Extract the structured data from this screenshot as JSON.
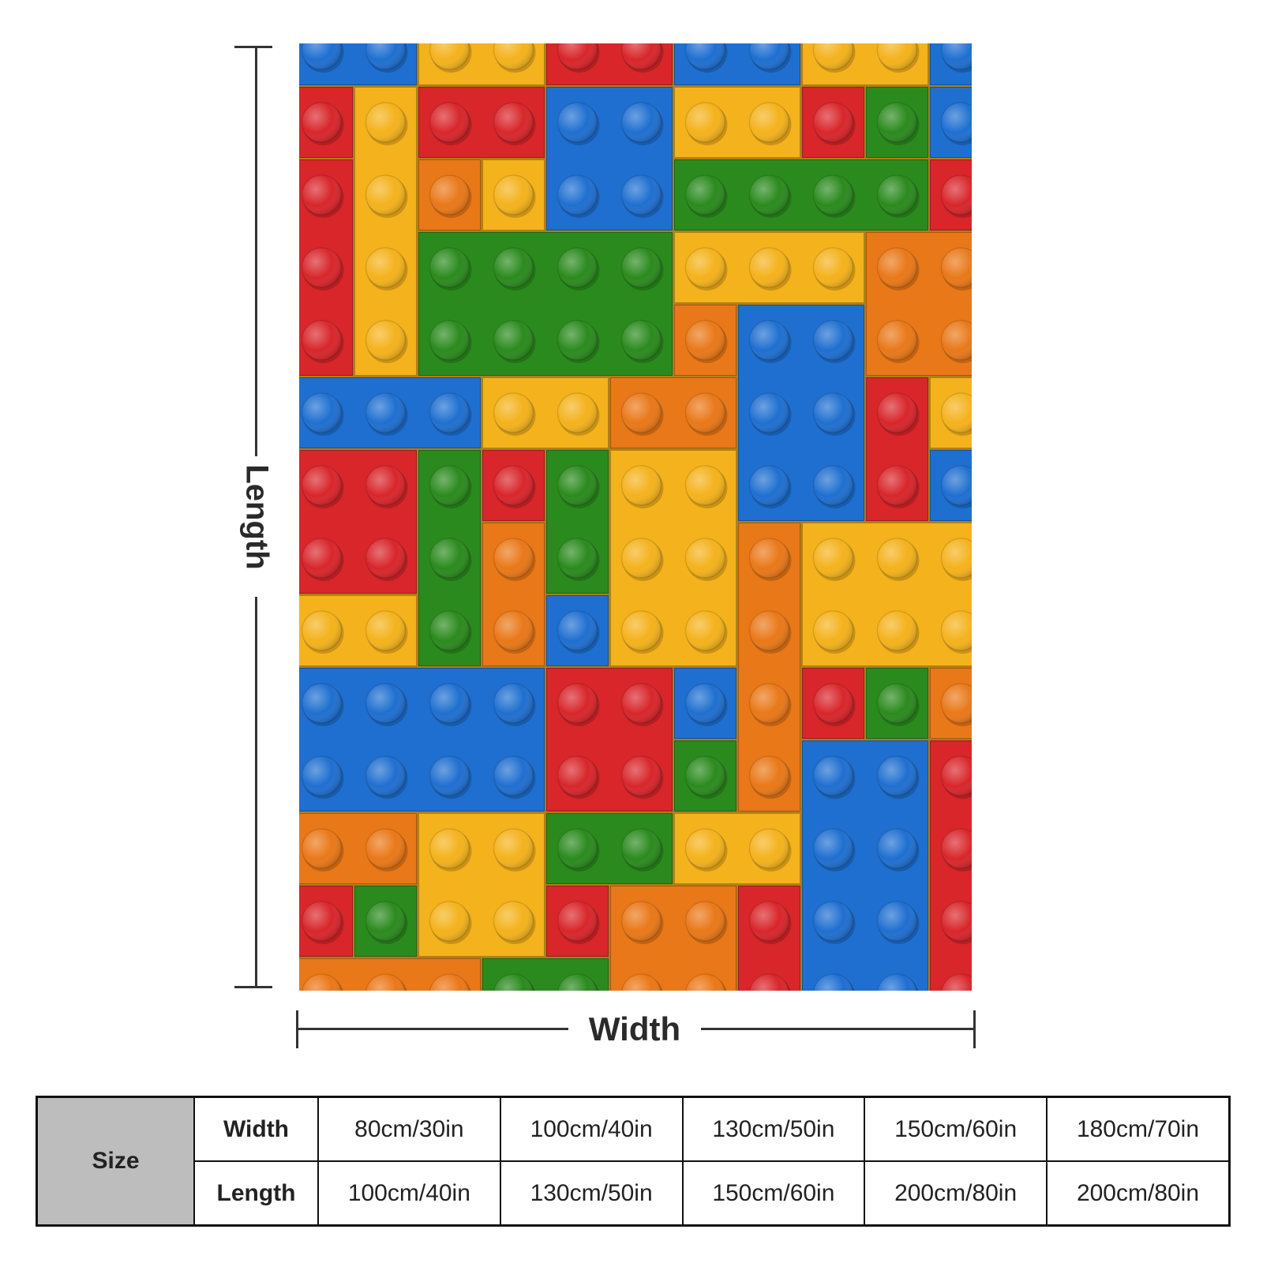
{
  "dimension_labels": {
    "length": "Length",
    "width": "Width"
  },
  "size_table": {
    "header": "Size",
    "rows": [
      {
        "label": "Width",
        "values": [
          "80cm/30in",
          "100cm/40in",
          "130cm/50in",
          "150cm/60in",
          "180cm/70in"
        ]
      },
      {
        "label": "Length",
        "values": [
          "100cm/40in",
          "130cm/50in",
          "150cm/60in",
          "200cm/80in",
          "200cm/80in"
        ]
      }
    ]
  },
  "colors": {
    "red": "#d8262b",
    "yellow": "#f4b21c",
    "blue": "#1f6fd0",
    "green": "#2b8a1e",
    "orange": "#e97818"
  },
  "pattern": "plastic toy bricks, top view"
}
